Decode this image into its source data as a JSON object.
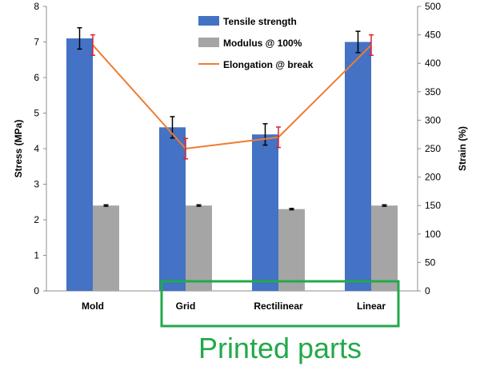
{
  "chart_data": {
    "type": "bar",
    "categories": [
      "Mold",
      "Grid",
      "Rectilinear",
      "Linear"
    ],
    "ylabel": "Stress (MPa)",
    "ylabel_right": "Strain (%)",
    "ylim": [
      0,
      8
    ],
    "y_ticks": [
      0,
      1,
      2,
      3,
      4,
      5,
      6,
      7,
      8
    ],
    "ylim_right": [
      0,
      500
    ],
    "y_ticks_right": [
      0,
      50,
      100,
      150,
      200,
      250,
      300,
      350,
      400,
      450,
      500
    ],
    "grid": false,
    "legend_position": "top-center",
    "series": [
      {
        "name": "Tensile strength",
        "type": "bar",
        "axis": "left",
        "color": "#4472c4",
        "values": [
          7.1,
          4.6,
          4.4,
          7.0
        ],
        "error": [
          0.3,
          0.3,
          0.3,
          0.3
        ]
      },
      {
        "name": "Modulus @ 100%",
        "type": "bar",
        "axis": "left",
        "color": "#a5a5a5",
        "values": [
          2.4,
          2.4,
          2.3,
          2.4
        ],
        "error": [
          0.02,
          0.02,
          0.02,
          0.02
        ]
      },
      {
        "name": "Elongation @ break",
        "type": "line",
        "axis": "right",
        "color": "#ed7d31",
        "values": [
          432,
          250,
          270,
          432
        ],
        "error": [
          18,
          18,
          18,
          18
        ],
        "error_color": "#e0202a"
      }
    ],
    "annotation": {
      "label": "Printed parts",
      "applies_to": [
        "Grid",
        "Rectilinear",
        "Linear"
      ],
      "color": "#22a94a"
    }
  }
}
